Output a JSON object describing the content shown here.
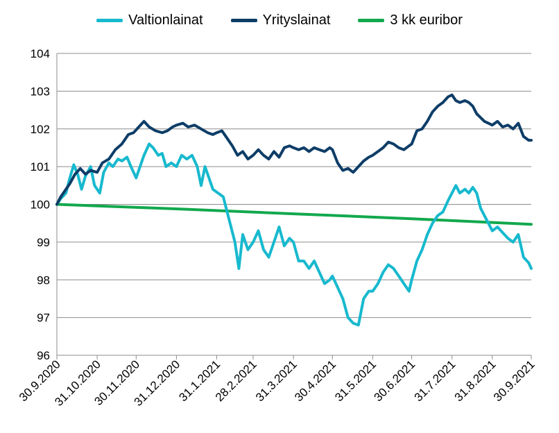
{
  "chart_data": {
    "type": "line",
    "title": "",
    "xlabel": "",
    "ylabel": "",
    "ylim": [
      96,
      104
    ],
    "yticks": [
      96,
      97,
      98,
      99,
      100,
      101,
      102,
      103,
      104
    ],
    "grid": "horizontal",
    "legend_position": "top",
    "x_tick_labels": [
      "30.9.2020",
      "31.10.2020",
      "30.11.2020",
      "31.12.2020",
      "31.1.2021",
      "28.2.2021",
      "31.3.2021",
      "30.4.2021",
      "31.5.2021",
      "30.6.2021",
      "31.7.2021",
      "31.8.2021",
      "30.9.2021"
    ],
    "x_tick_dates": [
      "2020-09-30",
      "2020-10-31",
      "2020-11-30",
      "2020-12-31",
      "2021-01-31",
      "2021-02-28",
      "2021-03-31",
      "2021-04-30",
      "2021-05-31",
      "2021-06-30",
      "2021-07-31",
      "2021-08-31",
      "2021-09-30"
    ],
    "series": [
      {
        "name": "Valtionlainat",
        "color": "#17b9ce",
        "points": [
          [
            "2020-09-30",
            100.0
          ],
          [
            "2020-10-03",
            100.15
          ],
          [
            "2020-10-07",
            100.3
          ],
          [
            "2020-10-10",
            100.7
          ],
          [
            "2020-10-13",
            101.05
          ],
          [
            "2020-10-16",
            100.8
          ],
          [
            "2020-10-19",
            100.4
          ],
          [
            "2020-10-22",
            100.75
          ],
          [
            "2020-10-26",
            101.0
          ],
          [
            "2020-10-29",
            100.5
          ],
          [
            "2020-11-02",
            100.3
          ],
          [
            "2020-11-05",
            100.85
          ],
          [
            "2020-11-09",
            101.1
          ],
          [
            "2020-11-12",
            101.0
          ],
          [
            "2020-11-16",
            101.2
          ],
          [
            "2020-11-19",
            101.15
          ],
          [
            "2020-11-23",
            101.25
          ],
          [
            "2020-11-26",
            101.0
          ],
          [
            "2020-11-30",
            100.7
          ],
          [
            "2020-12-03",
            101.0
          ],
          [
            "2020-12-06",
            101.3
          ],
          [
            "2020-12-10",
            101.6
          ],
          [
            "2020-12-13",
            101.5
          ],
          [
            "2020-12-17",
            101.3
          ],
          [
            "2020-12-20",
            101.35
          ],
          [
            "2020-12-23",
            101.0
          ],
          [
            "2020-12-27",
            101.1
          ],
          [
            "2020-12-31",
            101.0
          ],
          [
            "2021-01-04",
            101.3
          ],
          [
            "2021-01-08",
            101.2
          ],
          [
            "2021-01-12",
            101.3
          ],
          [
            "2021-01-16",
            101.0
          ],
          [
            "2021-01-19",
            100.5
          ],
          [
            "2021-01-22",
            101.0
          ],
          [
            "2021-01-25",
            100.7
          ],
          [
            "2021-01-28",
            100.4
          ],
          [
            "2021-02-01",
            100.3
          ],
          [
            "2021-02-05",
            100.2
          ],
          [
            "2021-02-08",
            99.8
          ],
          [
            "2021-02-11",
            99.4
          ],
          [
            "2021-02-14",
            99.0
          ],
          [
            "2021-02-17",
            98.3
          ],
          [
            "2021-02-20",
            99.2
          ],
          [
            "2021-02-24",
            98.8
          ],
          [
            "2021-02-28",
            99.0
          ],
          [
            "2021-03-04",
            99.3
          ],
          [
            "2021-03-08",
            98.8
          ],
          [
            "2021-03-12",
            98.6
          ],
          [
            "2021-03-16",
            99.0
          ],
          [
            "2021-03-20",
            99.4
          ],
          [
            "2021-03-24",
            98.9
          ],
          [
            "2021-03-28",
            99.1
          ],
          [
            "2021-03-31",
            99.0
          ],
          [
            "2021-04-04",
            98.5
          ],
          [
            "2021-04-08",
            98.5
          ],
          [
            "2021-04-12",
            98.3
          ],
          [
            "2021-04-16",
            98.5
          ],
          [
            "2021-04-20",
            98.2
          ],
          [
            "2021-04-24",
            97.9
          ],
          [
            "2021-04-28",
            98.0
          ],
          [
            "2021-04-30",
            98.1
          ],
          [
            "2021-05-04",
            97.8
          ],
          [
            "2021-05-08",
            97.5
          ],
          [
            "2021-05-12",
            97.0
          ],
          [
            "2021-05-16",
            96.85
          ],
          [
            "2021-05-20",
            96.8
          ],
          [
            "2021-05-24",
            97.5
          ],
          [
            "2021-05-28",
            97.7
          ],
          [
            "2021-05-31",
            97.7
          ],
          [
            "2021-06-04",
            97.9
          ],
          [
            "2021-06-08",
            98.2
          ],
          [
            "2021-06-12",
            98.4
          ],
          [
            "2021-06-16",
            98.3
          ],
          [
            "2021-06-20",
            98.1
          ],
          [
            "2021-06-24",
            97.9
          ],
          [
            "2021-06-28",
            97.7
          ],
          [
            "2021-06-30",
            98.0
          ],
          [
            "2021-07-04",
            98.5
          ],
          [
            "2021-07-08",
            98.8
          ],
          [
            "2021-07-12",
            99.2
          ],
          [
            "2021-07-16",
            99.5
          ],
          [
            "2021-07-20",
            99.7
          ],
          [
            "2021-07-24",
            99.8
          ],
          [
            "2021-07-28",
            100.1
          ],
          [
            "2021-07-31",
            100.3
          ],
          [
            "2021-08-03",
            100.5
          ],
          [
            "2021-08-06",
            100.3
          ],
          [
            "2021-08-10",
            100.4
          ],
          [
            "2021-08-13",
            100.3
          ],
          [
            "2021-08-16",
            100.45
          ],
          [
            "2021-08-19",
            100.3
          ],
          [
            "2021-08-22",
            99.9
          ],
          [
            "2021-08-25",
            99.7
          ],
          [
            "2021-08-28",
            99.5
          ],
          [
            "2021-08-31",
            99.3
          ],
          [
            "2021-09-04",
            99.4
          ],
          [
            "2021-09-08",
            99.25
          ],
          [
            "2021-09-12",
            99.1
          ],
          [
            "2021-09-16",
            99.0
          ],
          [
            "2021-09-20",
            99.2
          ],
          [
            "2021-09-24",
            98.6
          ],
          [
            "2021-09-28",
            98.45
          ],
          [
            "2021-09-30",
            98.3
          ]
        ]
      },
      {
        "name": "Yrityslainat",
        "color": "#0e3d67",
        "points": [
          [
            "2020-09-30",
            100.0
          ],
          [
            "2020-10-03",
            100.2
          ],
          [
            "2020-10-07",
            100.4
          ],
          [
            "2020-10-10",
            100.55
          ],
          [
            "2020-10-14",
            100.8
          ],
          [
            "2020-10-18",
            100.95
          ],
          [
            "2020-10-22",
            100.8
          ],
          [
            "2020-10-26",
            100.9
          ],
          [
            "2020-10-31",
            100.85
          ],
          [
            "2020-11-04",
            101.1
          ],
          [
            "2020-11-09",
            101.2
          ],
          [
            "2020-11-14",
            101.45
          ],
          [
            "2020-11-19",
            101.6
          ],
          [
            "2020-11-24",
            101.85
          ],
          [
            "2020-11-28",
            101.9
          ],
          [
            "2020-12-02",
            102.05
          ],
          [
            "2020-12-06",
            102.2
          ],
          [
            "2020-12-10",
            102.05
          ],
          [
            "2020-12-15",
            101.95
          ],
          [
            "2020-12-20",
            101.9
          ],
          [
            "2020-12-24",
            101.95
          ],
          [
            "2020-12-28",
            102.05
          ],
          [
            "2020-12-31",
            102.1
          ],
          [
            "2021-01-05",
            102.15
          ],
          [
            "2021-01-09",
            102.05
          ],
          [
            "2021-01-14",
            102.1
          ],
          [
            "2021-01-19",
            102.0
          ],
          [
            "2021-01-24",
            101.9
          ],
          [
            "2021-01-28",
            101.85
          ],
          [
            "2021-01-31",
            101.9
          ],
          [
            "2021-02-04",
            101.95
          ],
          [
            "2021-02-08",
            101.75
          ],
          [
            "2021-02-12",
            101.55
          ],
          [
            "2021-02-16",
            101.3
          ],
          [
            "2021-02-20",
            101.4
          ],
          [
            "2021-02-24",
            101.2
          ],
          [
            "2021-02-28",
            101.3
          ],
          [
            "2021-03-04",
            101.45
          ],
          [
            "2021-03-08",
            101.3
          ],
          [
            "2021-03-12",
            101.2
          ],
          [
            "2021-03-16",
            101.4
          ],
          [
            "2021-03-20",
            101.25
          ],
          [
            "2021-03-24",
            101.5
          ],
          [
            "2021-03-28",
            101.55
          ],
          [
            "2021-03-31",
            101.5
          ],
          [
            "2021-04-04",
            101.45
          ],
          [
            "2021-04-08",
            101.5
          ],
          [
            "2021-04-12",
            101.4
          ],
          [
            "2021-04-16",
            101.5
          ],
          [
            "2021-04-20",
            101.45
          ],
          [
            "2021-04-24",
            101.4
          ],
          [
            "2021-04-28",
            101.5
          ],
          [
            "2021-04-30",
            101.45
          ],
          [
            "2021-05-04",
            101.1
          ],
          [
            "2021-05-08",
            100.9
          ],
          [
            "2021-05-12",
            100.95
          ],
          [
            "2021-05-16",
            100.85
          ],
          [
            "2021-05-20",
            101.0
          ],
          [
            "2021-05-24",
            101.15
          ],
          [
            "2021-05-28",
            101.25
          ],
          [
            "2021-05-31",
            101.3
          ],
          [
            "2021-06-04",
            101.4
          ],
          [
            "2021-06-08",
            101.5
          ],
          [
            "2021-06-12",
            101.65
          ],
          [
            "2021-06-16",
            101.6
          ],
          [
            "2021-06-20",
            101.5
          ],
          [
            "2021-06-24",
            101.45
          ],
          [
            "2021-06-28",
            101.55
          ],
          [
            "2021-06-30",
            101.6
          ],
          [
            "2021-07-04",
            101.95
          ],
          [
            "2021-07-08",
            102.0
          ],
          [
            "2021-07-12",
            102.2
          ],
          [
            "2021-07-16",
            102.45
          ],
          [
            "2021-07-20",
            102.6
          ],
          [
            "2021-07-24",
            102.7
          ],
          [
            "2021-07-28",
            102.85
          ],
          [
            "2021-07-31",
            102.9
          ],
          [
            "2021-08-03",
            102.75
          ],
          [
            "2021-08-06",
            102.7
          ],
          [
            "2021-08-10",
            102.75
          ],
          [
            "2021-08-13",
            102.7
          ],
          [
            "2021-08-16",
            102.6
          ],
          [
            "2021-08-19",
            102.4
          ],
          [
            "2021-08-22",
            102.3
          ],
          [
            "2021-08-25",
            102.2
          ],
          [
            "2021-08-28",
            102.15
          ],
          [
            "2021-08-31",
            102.1
          ],
          [
            "2021-09-04",
            102.2
          ],
          [
            "2021-09-08",
            102.05
          ],
          [
            "2021-09-12",
            102.1
          ],
          [
            "2021-09-16",
            102.0
          ],
          [
            "2021-09-20",
            102.15
          ],
          [
            "2021-09-24",
            101.8
          ],
          [
            "2021-09-28",
            101.7
          ],
          [
            "2021-09-30",
            101.7
          ]
        ]
      },
      {
        "name": "3 kk euribor",
        "color": "#12a84d",
        "points": [
          [
            "2020-09-30",
            100.0
          ],
          [
            "2020-12-31",
            99.88
          ],
          [
            "2021-03-31",
            99.75
          ],
          [
            "2021-06-30",
            99.62
          ],
          [
            "2021-09-30",
            99.47
          ]
        ]
      }
    ]
  }
}
